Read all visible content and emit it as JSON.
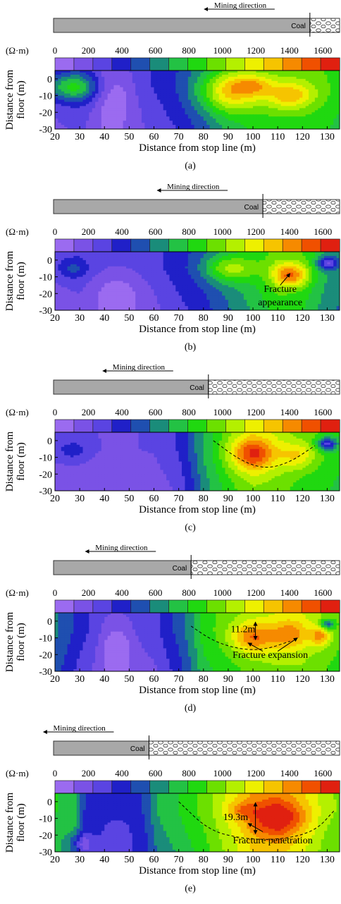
{
  "legend": {
    "unit": "(Ω·m)",
    "ticks": [
      0,
      200,
      400,
      600,
      800,
      1000,
      1200,
      1400,
      1600
    ],
    "colors": [
      "#9b6bf0",
      "#7a52e6",
      "#5a44e2",
      "#2020c8",
      "#1f4fb0",
      "#1a8c7a",
      "#23c244",
      "#20d810",
      "#6ce000",
      "#b4f000",
      "#eef000",
      "#f6c400",
      "#f68a00",
      "#f05000",
      "#e02010"
    ]
  },
  "mining_label": "Mining direction",
  "coal_label": "Coal",
  "panels": [
    {
      "caption": "(a)",
      "stop_line_x": 123,
      "annotations": []
    },
    {
      "caption": "(b)",
      "stop_line_x": 104,
      "annotations": [
        {
          "text": "Fracture",
          "x": 111,
          "y": -19
        },
        {
          "text": "appearance",
          "x": 111,
          "y": -27
        }
      ]
    },
    {
      "caption": "(c)",
      "stop_line_x": 82,
      "annotations": []
    },
    {
      "caption": "(d)",
      "stop_line_x": 75,
      "annotations": [
        {
          "text": "11.2m",
          "x": 96,
          "y": -6.5
        },
        {
          "text": "Fracture expansion",
          "x": 107,
          "y": -22
        }
      ]
    },
    {
      "caption": "(e)",
      "stop_line_x": 58,
      "annotations": [
        {
          "text": "19.3m",
          "x": 93,
          "y": -11
        },
        {
          "text": "Fracture penetration",
          "x": 108,
          "y": -25
        }
      ]
    }
  ],
  "chart_data": {
    "type": "heatmap",
    "xlabel": "Distance from stop line (m)",
    "ylabel": "Distance from floor (m)",
    "xlim": [
      20,
      135
    ],
    "ylim": [
      -30,
      5
    ],
    "xticks": [
      20,
      30,
      40,
      50,
      60,
      70,
      80,
      90,
      100,
      110,
      120,
      130
    ],
    "yticks": [
      0,
      -10,
      -20,
      -30
    ],
    "color_range": [
      0,
      1700
    ],
    "panels": [
      {
        "name": "(a)",
        "base": [
          [
            20,
            300
          ],
          [
            30,
            350
          ],
          [
            40,
            250
          ],
          [
            50,
            300
          ],
          [
            60,
            350
          ],
          [
            70,
            450
          ],
          [
            80,
            600
          ],
          [
            90,
            800
          ],
          [
            100,
            900
          ],
          [
            110,
            950
          ],
          [
            120,
            950
          ],
          [
            130,
            900
          ],
          [
            135,
            850
          ]
        ],
        "blobs": [
          [
            27,
            -5,
            10,
            8,
            500
          ],
          [
            90,
            -8,
            12,
            12,
            500
          ],
          [
            115,
            -10,
            10,
            8,
            400
          ],
          [
            100,
            -4,
            8,
            6,
            300
          ],
          [
            45,
            -10,
            8,
            20,
            -200
          ]
        ]
      },
      {
        "name": "(b)",
        "base": [
          [
            20,
            250
          ],
          [
            30,
            300
          ],
          [
            40,
            250
          ],
          [
            50,
            250
          ],
          [
            60,
            300
          ],
          [
            70,
            400
          ],
          [
            80,
            500
          ],
          [
            90,
            650
          ],
          [
            100,
            800
          ],
          [
            110,
            950
          ],
          [
            120,
            900
          ],
          [
            130,
            700
          ],
          [
            135,
            650
          ]
        ],
        "blobs": [
          [
            115,
            -9,
            7,
            7,
            600
          ],
          [
            90,
            -5,
            10,
            8,
            400
          ],
          [
            27,
            -5,
            6,
            6,
            200
          ],
          [
            130,
            -2,
            4,
            4,
            -500
          ],
          [
            45,
            -20,
            10,
            12,
            -150
          ]
        ]
      },
      {
        "name": "(c)",
        "base": [
          [
            20,
            250
          ],
          [
            30,
            250
          ],
          [
            40,
            220
          ],
          [
            50,
            220
          ],
          [
            60,
            240
          ],
          [
            70,
            350
          ],
          [
            75,
            500
          ],
          [
            80,
            700
          ],
          [
            90,
            950
          ],
          [
            100,
            1100
          ],
          [
            110,
            1050
          ],
          [
            120,
            950
          ],
          [
            130,
            900
          ],
          [
            135,
            850
          ]
        ],
        "blobs": [
          [
            100,
            -8,
            9,
            10,
            550
          ],
          [
            118,
            -9,
            7,
            8,
            300
          ],
          [
            130,
            -2,
            4,
            4,
            -600
          ],
          [
            27,
            -6,
            6,
            6,
            150
          ]
        ]
      },
      {
        "name": "(d)",
        "base": [
          [
            20,
            600
          ],
          [
            30,
            400
          ],
          [
            40,
            250
          ],
          [
            50,
            250
          ],
          [
            60,
            300
          ],
          [
            70,
            500
          ],
          [
            75,
            650
          ],
          [
            80,
            850
          ],
          [
            90,
            950
          ],
          [
            100,
            1050
          ],
          [
            110,
            1100
          ],
          [
            120,
            1100
          ],
          [
            130,
            1000
          ],
          [
            135,
            950
          ]
        ],
        "blobs": [
          [
            100,
            -10,
            9,
            9,
            450
          ],
          [
            115,
            -8,
            7,
            9,
            350
          ],
          [
            127,
            -9,
            4,
            6,
            400
          ],
          [
            130,
            -2,
            3,
            3,
            -500
          ],
          [
            45,
            -15,
            6,
            14,
            -200
          ]
        ]
      },
      {
        "name": "(e)",
        "base": [
          [
            20,
            800
          ],
          [
            28,
            750
          ],
          [
            32,
            450
          ],
          [
            40,
            450
          ],
          [
            50,
            450
          ],
          [
            55,
            450
          ],
          [
            62,
            700
          ],
          [
            70,
            800
          ],
          [
            80,
            950
          ],
          [
            90,
            1150
          ],
          [
            100,
            1350
          ],
          [
            110,
            1400
          ],
          [
            120,
            1250
          ],
          [
            130,
            1050
          ],
          [
            135,
            1000
          ]
        ],
        "blobs": [
          [
            110,
            -10,
            11,
            10,
            400
          ],
          [
            95,
            -5,
            6,
            5,
            200
          ],
          [
            45,
            -15,
            8,
            12,
            -100
          ],
          [
            30,
            -25,
            5,
            6,
            -250
          ]
        ]
      }
    ]
  }
}
